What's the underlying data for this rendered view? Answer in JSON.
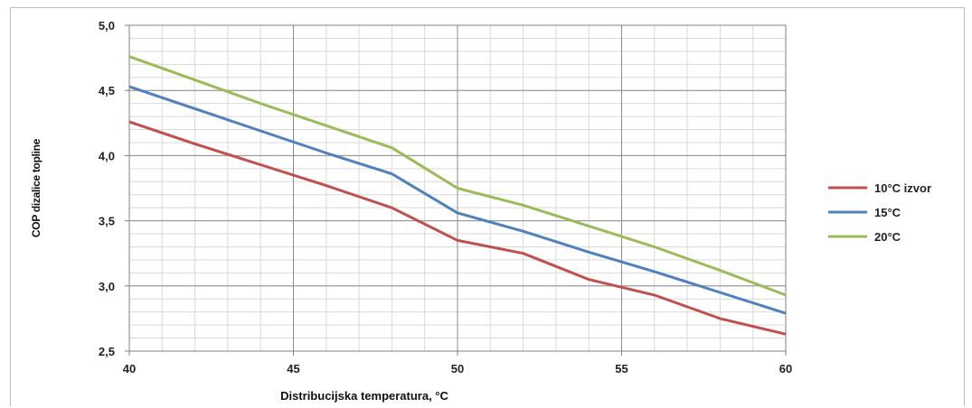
{
  "chart_data": {
    "type": "line",
    "xlabel": "Distribucijska  temperatura, °C",
    "ylabel": "COP dizalice topline",
    "xlim": [
      40,
      60
    ],
    "ylim": [
      2.5,
      5.0
    ],
    "x_ticks": [
      "40",
      "45",
      "50",
      "55",
      "60"
    ],
    "y_ticks": [
      "2,5",
      "3,0",
      "3,5",
      "4,0",
      "4,5",
      "5,0"
    ],
    "grid": true,
    "legend_position": "right",
    "series": [
      {
        "name": "10°C izvor",
        "color": "#c0504d",
        "x": [
          40,
          42,
          44,
          46,
          48,
          50,
          52,
          54,
          56,
          58,
          60
        ],
        "y": [
          4.26,
          4.09,
          3.93,
          3.77,
          3.6,
          3.35,
          3.25,
          3.05,
          2.93,
          2.75,
          2.63
        ]
      },
      {
        "name": "15°C",
        "color": "#4f81bd",
        "x": [
          40,
          42,
          44,
          46,
          48,
          50,
          52,
          54,
          56,
          58,
          60
        ],
        "y": [
          4.53,
          4.36,
          4.19,
          4.02,
          3.86,
          3.56,
          3.42,
          3.26,
          3.11,
          2.95,
          2.79
        ]
      },
      {
        "name": "20°C",
        "color": "#9bbb59",
        "x": [
          40,
          42,
          44,
          46,
          48,
          50,
          52,
          54,
          56,
          58,
          60
        ],
        "y": [
          4.76,
          4.58,
          4.4,
          4.23,
          4.06,
          3.75,
          3.62,
          3.46,
          3.3,
          3.12,
          2.93
        ]
      }
    ]
  }
}
